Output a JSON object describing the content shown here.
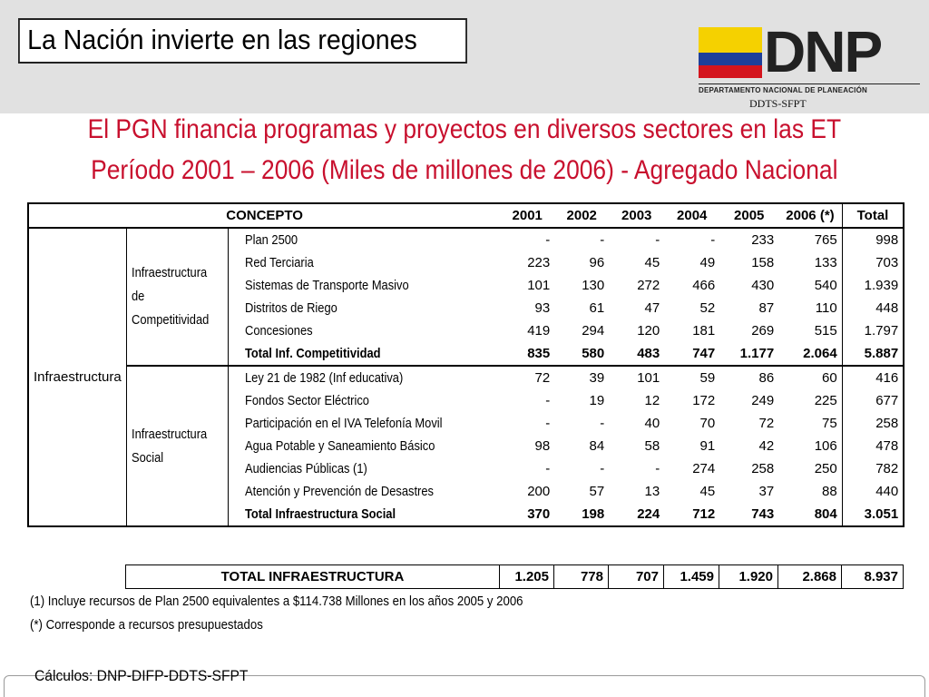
{
  "header": {
    "title": "La Nación invierte en las regiones",
    "logo": {
      "text": "DNP",
      "subtitle": "DEPARTAMENTO NACIONAL DE PLANEACIÓN",
      "unit": "DDTS-SFPT",
      "colors": {
        "yellow": "#f5d100",
        "blue": "#1d3f9a",
        "red": "#d4141d"
      }
    }
  },
  "subtitle": {
    "line1": "El PGN financia programas y proyectos en diversos sectores en las ET",
    "line2": "Período 2001 – 2006 (Miles de millones de 2006) - Agregado Nacional",
    "color": "#c8102e"
  },
  "table": {
    "headers": [
      "CONCEPTO",
      "2001",
      "2002",
      "2003",
      "2004",
      "2005",
      "2006 (*)",
      "Total"
    ],
    "category": "Infraestructura",
    "groups": [
      {
        "name": "Infraestructura de Competitividad",
        "rows": [
          {
            "label": "Plan 2500",
            "values": [
              "-",
              "-",
              "-",
              "-",
              "233",
              "765",
              "998"
            ]
          },
          {
            "label": "Red Terciaria",
            "values": [
              "223",
              "96",
              "45",
              "49",
              "158",
              "133",
              "703"
            ]
          },
          {
            "label": "Sistemas de Transporte Masivo",
            "values": [
              "101",
              "130",
              "272",
              "466",
              "430",
              "540",
              "1.939"
            ]
          },
          {
            "label": "Distritos de Riego",
            "values": [
              "93",
              "61",
              "47",
              "52",
              "87",
              "110",
              "448"
            ]
          },
          {
            "label": "Concesiones",
            "values": [
              "419",
              "294",
              "120",
              "181",
              "269",
              "515",
              "1.797"
            ]
          }
        ],
        "total": {
          "label": "Total Inf. Competitividad",
          "values": [
            "835",
            "580",
            "483",
            "747",
            "1.177",
            "2.064",
            "5.887"
          ]
        }
      },
      {
        "name": "Infraestructura Social",
        "rows": [
          {
            "label": "Ley 21 de 1982 (Inf educativa)",
            "values": [
              "72",
              "39",
              "101",
              "59",
              "86",
              "60",
              "416"
            ]
          },
          {
            "label": "Fondos Sector Eléctrico",
            "values": [
              "-",
              "19",
              "12",
              "172",
              "249",
              "225",
              "677"
            ]
          },
          {
            "label": "Participación en el IVA Telefonía Movil",
            "values": [
              "-",
              "-",
              "40",
              "70",
              "72",
              "75",
              "258"
            ]
          },
          {
            "label": "Agua Potable y Saneamiento Básico",
            "values": [
              "98",
              "84",
              "58",
              "91",
              "42",
              "106",
              "478"
            ]
          },
          {
            "label": "Audiencias Públicas (1)",
            "values": [
              "-",
              "-",
              "-",
              "274",
              "258",
              "250",
              "782"
            ]
          },
          {
            "label": "Atención y Prevención de Desastres",
            "values": [
              "200",
              "57",
              "13",
              "45",
              "37",
              "88",
              "440"
            ]
          }
        ],
        "total": {
          "label": "Total Infraestructura Social",
          "values": [
            "370",
            "198",
            "224",
            "712",
            "743",
            "804",
            "3.051"
          ]
        }
      }
    ],
    "grand_total": {
      "label": "TOTAL INFRAESTRUCTURA",
      "values": [
        "1.205",
        "778",
        "707",
        "1.459",
        "1.920",
        "2.868",
        "8.937"
      ]
    }
  },
  "notes": [
    "(1) Incluye recursos de Plan 2500 equivalentes a $114.738 Millones en los años 2005 y 2006",
    "(*) Corresponde a recursos presupuestados"
  ],
  "source": "Cálculos: DNP-DIFP-DDTS-SFPT"
}
